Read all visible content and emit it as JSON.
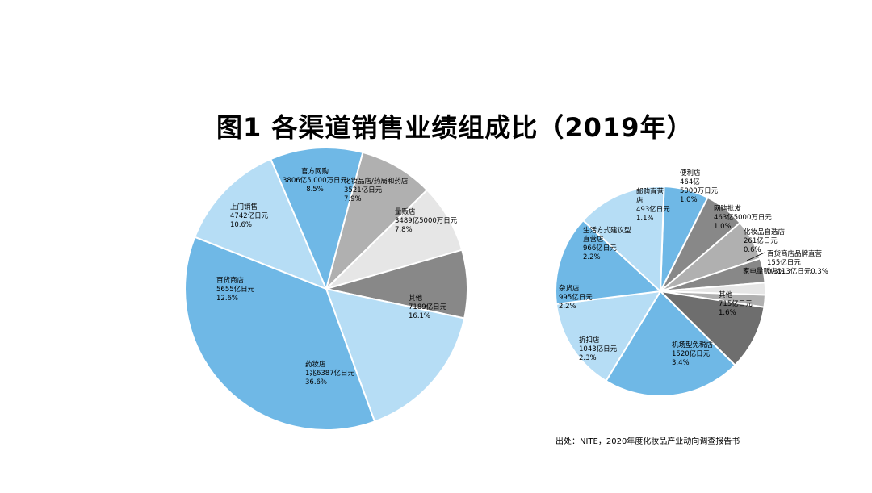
{
  "title": "图1 各渠道销售业绩组成比（2019年）",
  "source": "出处：NITE，2020年度化妆品产业动向调查报告书",
  "chart_data": [
    {
      "type": "pie",
      "slices": [
        {
          "name": "官方网购",
          "amount": "3806亿5,000万日元",
          "percent": 8.5,
          "percent_label": "8.5%",
          "color": "#b0b0b0"
        },
        {
          "name": "化妆品店/药局和药店",
          "amount": "3521亿日元",
          "percent": 7.9,
          "percent_label": "7.9%",
          "color": "#e6e6e6"
        },
        {
          "name": "量贩店",
          "amount": "3489亿5000万日元",
          "percent": 7.8,
          "percent_label": "7.8%",
          "color": "#888888"
        },
        {
          "name": "其他",
          "amount": "7189亿日元",
          "percent": 16.1,
          "percent_label": "16.1%",
          "color": "#b6ddf5"
        },
        {
          "name": "药妆店",
          "amount": "1兆6387亿日元",
          "percent": 36.6,
          "percent_label": "36.6%",
          "color": "#6fb8e6"
        },
        {
          "name": "百货商店",
          "amount": "5655亿日元",
          "percent": 12.6,
          "percent_label": "12.6%",
          "color": "#b6ddf5"
        },
        {
          "name": "上门销售",
          "amount": "4742亿日元",
          "percent": 10.6,
          "percent_label": "10.6%",
          "color": "#6fb8e6"
        }
      ]
    },
    {
      "type": "pie",
      "slices": [
        {
          "name": "邮购直营店",
          "amount": "493亿日元",
          "percent": 1.1,
          "percent_label": "1.1%",
          "color": "#6fb8e6"
        },
        {
          "name": "便利店",
          "amount": "464亿5000万日元",
          "percent": 1.0,
          "percent_label": "1.0%",
          "color": "#888888"
        },
        {
          "name": "网购批发",
          "amount": "463亿5000万日元",
          "percent": 1.0,
          "percent_label": "1.0%",
          "color": "#b0b0b0"
        },
        {
          "name": "化妆品自选店",
          "amount": "261亿日元",
          "percent": 0.6,
          "percent_label": "0.6%",
          "color": "#888888"
        },
        {
          "name": "百货商店品牌直营",
          "amount": "155亿日元",
          "percent": 0.3,
          "percent_label": "0.3%",
          "color": "#e6e6e6"
        },
        {
          "name": "家电量贩店",
          "amount": "113亿日元",
          "percent": 0.3,
          "percent_label": "0.3%",
          "color": "#b0b0b0"
        },
        {
          "name": "其他",
          "amount": "715亿日元",
          "percent": 1.6,
          "percent_label": "1.6%",
          "color": "#6e6e6e"
        },
        {
          "name": "机场型免税店",
          "amount": "1520亿日元",
          "percent": 3.4,
          "percent_label": "3.4%",
          "color": "#6fb8e6"
        },
        {
          "name": "折扣店",
          "amount": "1043亿日元",
          "percent": 2.3,
          "percent_label": "2.3%",
          "color": "#b6ddf5"
        },
        {
          "name": "杂货店",
          "amount": "995亿日元",
          "percent": 2.2,
          "percent_label": "2.2%",
          "color": "#6fb8e6"
        },
        {
          "name": "生活方式建议型直营店",
          "amount": "966亿日元",
          "percent": 2.2,
          "percent_label": "2.2%",
          "color": "#b6ddf5"
        }
      ]
    }
  ]
}
